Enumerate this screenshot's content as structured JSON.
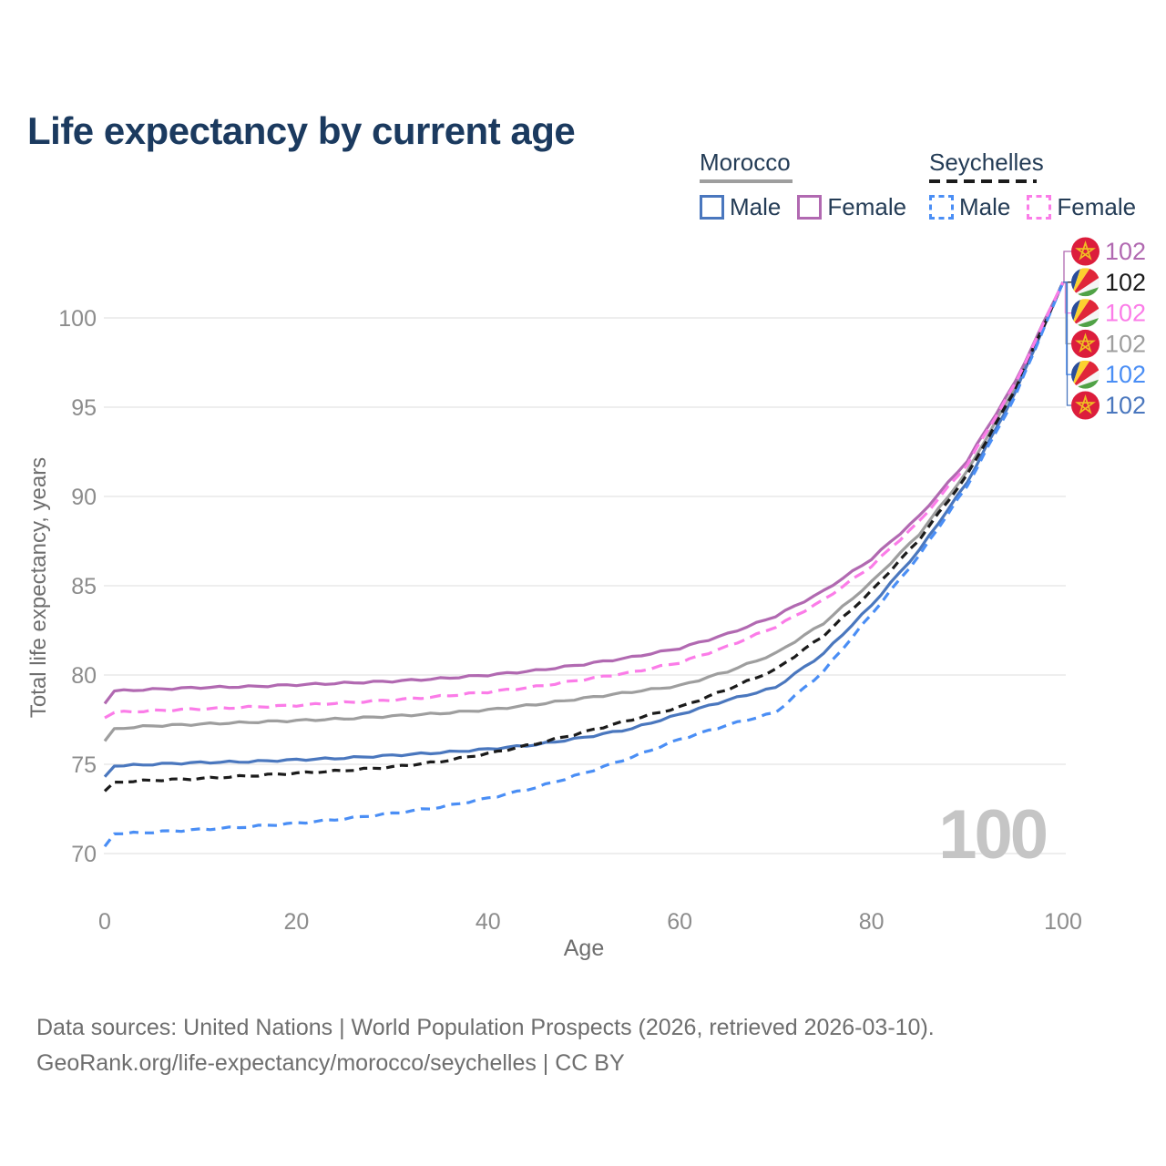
{
  "title": "Life expectancy by current age",
  "legend": {
    "groups": [
      {
        "label": "Morocco",
        "line_style": "solid",
        "underline_color": "#9e9e9e",
        "items": [
          {
            "label": "Male",
            "color": "#4a77be"
          },
          {
            "label": "Female",
            "color": "#b169b1"
          }
        ]
      },
      {
        "label": "Seychelles",
        "line_style": "dashed",
        "underline_color": "#1b1b1b",
        "items": [
          {
            "label": "Male",
            "color": "#4a8ef5"
          },
          {
            "label": "Female",
            "color": "#fb7ce8"
          }
        ]
      }
    ]
  },
  "chart_data": {
    "type": "line",
    "title": "Life expectancy by current age",
    "xlabel": "Age",
    "ylabel": "Total life expectancy, years",
    "x_ticks": [
      0,
      20,
      40,
      60,
      80,
      100
    ],
    "y_ticks": [
      70,
      75,
      80,
      85,
      90,
      95,
      100
    ],
    "xlim": [
      0,
      100
    ],
    "ylim": [
      69,
      103
    ],
    "grid": "horizontal",
    "watermark": "100",
    "x": [
      0,
      1,
      5,
      10,
      15,
      20,
      25,
      30,
      35,
      40,
      45,
      50,
      55,
      60,
      65,
      70,
      75,
      80,
      85,
      90,
      95,
      100
    ],
    "series": [
      {
        "name": "Morocco",
        "country": "Morocco",
        "flag": "morocco",
        "color": "#9e9e9e",
        "dash": null,
        "end_label": "102",
        "values": [
          76.3,
          77.0,
          77.15,
          77.25,
          77.35,
          77.45,
          77.55,
          77.7,
          77.85,
          78.05,
          78.35,
          78.7,
          79.05,
          79.4,
          80.2,
          81.2,
          82.9,
          85.2,
          87.9,
          91.4,
          96.1,
          102
        ]
      },
      {
        "name": "Morocco Male",
        "country": "Morocco",
        "flag": "morocco",
        "color": "#4a77be",
        "dash": null,
        "end_label": "102",
        "values": [
          74.3,
          74.9,
          75.0,
          75.1,
          75.15,
          75.25,
          75.35,
          75.5,
          75.65,
          75.85,
          76.1,
          76.5,
          77.0,
          77.8,
          78.6,
          79.3,
          81.2,
          83.9,
          87.0,
          90.8,
          95.8,
          102
        ]
      },
      {
        "name": "Morocco Female",
        "country": "Morocco",
        "flag": "morocco",
        "color": "#b169b1",
        "dash": null,
        "end_label": "102",
        "values": [
          78.4,
          79.1,
          79.2,
          79.3,
          79.35,
          79.45,
          79.55,
          79.65,
          79.8,
          80.0,
          80.25,
          80.6,
          81.0,
          81.5,
          82.3,
          83.3,
          84.7,
          86.5,
          88.9,
          92.0,
          96.4,
          102
        ]
      },
      {
        "name": "Seychelles",
        "country": "Seychelles",
        "flag": "seychelles",
        "color": "#1b1b1b",
        "dash": "9 6",
        "end_label": "102",
        "values": [
          73.5,
          74.0,
          74.1,
          74.2,
          74.35,
          74.5,
          74.65,
          74.85,
          75.15,
          75.6,
          76.15,
          76.8,
          77.5,
          78.2,
          79.2,
          80.3,
          82.2,
          84.7,
          87.6,
          91.2,
          96.0,
          102
        ]
      },
      {
        "name": "Seychelles Male",
        "country": "Seychelles",
        "flag": "seychelles",
        "color": "#4a8ef5",
        "dash": "10 7",
        "end_label": "102",
        "values": [
          70.4,
          71.1,
          71.2,
          71.35,
          71.5,
          71.7,
          71.95,
          72.25,
          72.6,
          73.1,
          73.7,
          74.5,
          75.4,
          76.4,
          77.2,
          77.9,
          80.2,
          83.4,
          86.7,
          90.6,
          95.6,
          102
        ]
      },
      {
        "name": "Seychelles Female",
        "country": "Seychelles",
        "flag": "seychelles",
        "color": "#fb7ce8",
        "dash": "12 7",
        "end_label": "102",
        "values": [
          77.6,
          77.9,
          78.0,
          78.1,
          78.2,
          78.3,
          78.45,
          78.6,
          78.8,
          79.05,
          79.35,
          79.75,
          80.15,
          80.7,
          81.6,
          82.7,
          84.2,
          86.1,
          88.6,
          91.8,
          96.3,
          102
        ]
      }
    ],
    "right_label_order": [
      2,
      3,
      5,
      0,
      4,
      1
    ],
    "legend_position": "top-right",
    "colors": {
      "gridline": "#e9e9e9",
      "tick_label": "#8c8c8c",
      "axis_title": "#6e6e6e",
      "watermark": "#c5c5c5",
      "morocco_flag_red": "#dc1d3c",
      "morocco_star_gold": "#efbe23",
      "seychelles_blue": "#2a4d9b",
      "seychelles_yellow": "#fcd12f",
      "seychelles_red": "#e02639",
      "seychelles_white": "#f5f5f5",
      "seychelles_green": "#50a246"
    }
  },
  "footer": {
    "line1": "Data sources: United Nations | World Population Prospects (2026, retrieved 2026-03-10).",
    "line2": "GeoRank.org/life-expectancy/morocco/seychelles | CC BY"
  }
}
